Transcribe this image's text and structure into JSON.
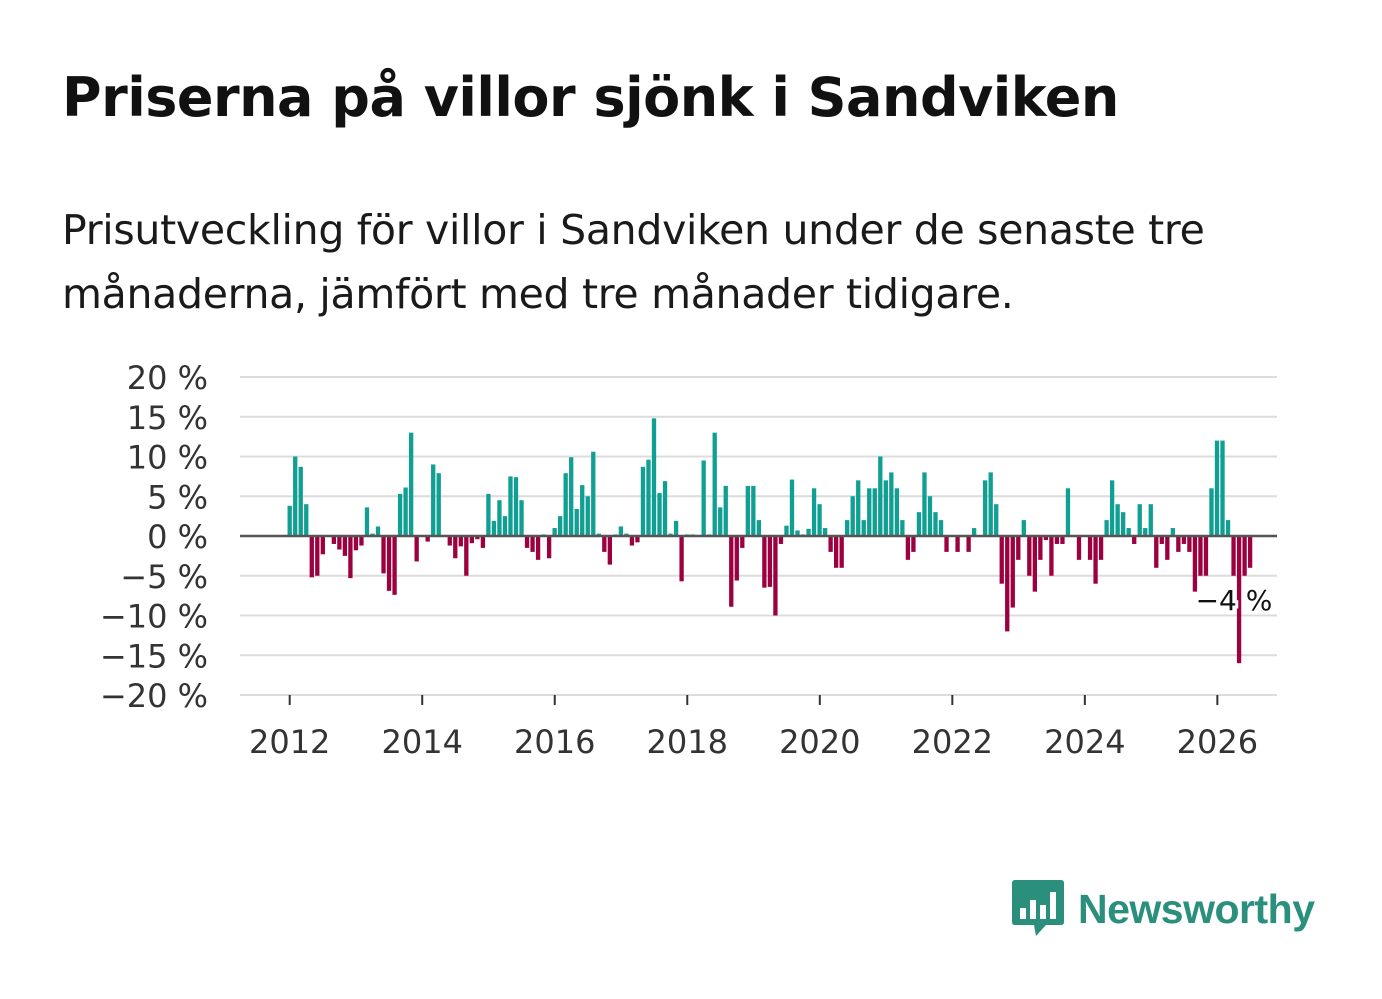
{
  "header": {
    "title": "Priserna på villor sjönk i Sandviken",
    "subtitle": "Prisutveckling för villor i Sandviken under de senaste tre månaderna, jämfört med tre månader tidigare."
  },
  "logo": {
    "text": "Newsworthy",
    "icon": "bar-chart-speech-bubble-icon"
  },
  "colors": {
    "positive": "#109f93",
    "negative": "#9c003f",
    "grid": "#dcdcdc",
    "zero": "#555555",
    "logo": "#2b8f7e"
  },
  "chart_data": {
    "type": "bar",
    "title": "Priserna på villor sjönk i Sandviken",
    "xlabel": "",
    "ylabel": "",
    "ylim": [
      -20,
      20
    ],
    "xlim": [
      2011.25,
      2026.9
    ],
    "yticks": [
      20,
      15,
      10,
      5,
      0,
      -5,
      -10,
      -15,
      -20
    ],
    "ytick_labels": [
      "20 %",
      "15 %",
      "10 %",
      "5 %",
      "0 %",
      "−5 %",
      "−10 %",
      "−15 %",
      "−20 %"
    ],
    "xticks": [
      2012,
      2014,
      2016,
      2018,
      2020,
      2022,
      2024,
      2026
    ],
    "xtick_labels": [
      "2012",
      "2014",
      "2016",
      "2018",
      "2020",
      "2022",
      "2024",
      "2026"
    ],
    "start": 2012.0,
    "step": 0.0833,
    "values": [
      3.8,
      10,
      8.7,
      4,
      -5.2,
      -5,
      -2.3,
      0,
      -1,
      -1.7,
      -2.5,
      -5.3,
      -1.8,
      -1.2,
      3.6,
      0.3,
      1.2,
      -4.7,
      -6.9,
      -7.4,
      5.3,
      6.1,
      13,
      -3.2,
      0,
      -0.7,
      9,
      7.9,
      0,
      -1.2,
      -2.8,
      -1.3,
      -5,
      -0.9,
      -0.4,
      -1.5,
      5.3,
      1.9,
      4.5,
      2.5,
      7.5,
      7.4,
      4.5,
      -1.5,
      -2,
      -3,
      0.2,
      -2.8,
      1,
      2.5,
      7.9,
      9.9,
      3.4,
      6.4,
      5,
      10.6,
      0.3,
      -2,
      -3.6,
      0.2,
      1.2,
      0.3,
      -1.2,
      -0.8,
      8.7,
      9.6,
      14.8,
      5.4,
      6.9,
      0.3,
      1.9,
      -5.7,
      0.2,
      0.2,
      0,
      9.5,
      0.2,
      13,
      3.6,
      6.3,
      -8.9,
      -5.6,
      -1.5,
      6.3,
      6.3,
      2,
      -6.5,
      -6.4,
      -10,
      -1,
      1.3,
      7.1,
      0.7,
      0.2,
      0.9,
      6,
      4,
      1,
      -2,
      -4,
      -4,
      2,
      5,
      7,
      2,
      6,
      6,
      10,
      7,
      8,
      6,
      2,
      -3,
      -2,
      3,
      8,
      5,
      3,
      2,
      -2,
      0,
      -2,
      0,
      -2,
      1,
      0,
      7,
      8,
      4,
      -6,
      -12,
      -9,
      -3,
      2,
      -5,
      -7,
      -3,
      -0.5,
      -5,
      -1,
      -1,
      6,
      0,
      -3,
      0,
      -3,
      -6,
      -3,
      2,
      7,
      4,
      3,
      1,
      -1,
      4,
      1,
      4,
      -4,
      -1,
      -3,
      1,
      -2,
      -1,
      -2,
      -7,
      -5,
      -5,
      6,
      12,
      12,
      2,
      -5,
      -16,
      -5,
      -4
    ],
    "annotation": {
      "label": "−4 %",
      "x": 2026.1,
      "y": -4
    }
  }
}
